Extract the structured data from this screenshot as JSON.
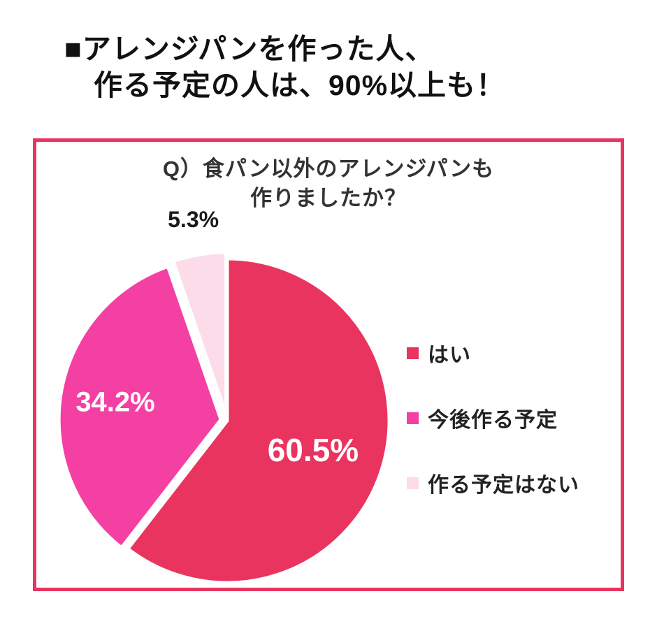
{
  "page": {
    "title_line1": "■アレンジパンを作った人、",
    "title_line2": "作る予定の人は、90%以上も！"
  },
  "chart_data": {
    "type": "pie",
    "title_line1": "Q）食パン以外のアレンジパンも",
    "title_line2": "作りましたか？",
    "slices": [
      {
        "label": "はい",
        "value": 60.5,
        "display": "60.5%",
        "color": "#e8345f",
        "label_inside": true,
        "explode": 0
      },
      {
        "label": "今後作る予定",
        "value": 34.2,
        "display": "34.2%",
        "color": "#f43fa3",
        "label_inside": true,
        "explode": 9
      },
      {
        "label": "作る予定はない",
        "value": 5.3,
        "display": "5.3%",
        "color": "#fbdce8",
        "label_inside": false,
        "explode": 9
      }
    ],
    "start_angle_deg": 0,
    "direction": "clockwise",
    "legend_position": "right",
    "panel_border_color": "#e8345f",
    "slice_gap_color": "#ffffff",
    "inside_label_color": "#ffffff",
    "outside_label_color": "#1a1a1a"
  }
}
